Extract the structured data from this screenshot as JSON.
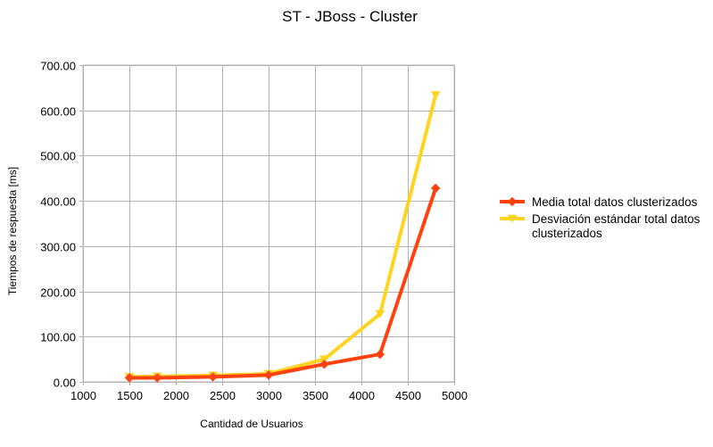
{
  "chart_data": {
    "type": "line",
    "title": "ST - JBoss - Cluster",
    "xlabel": "Cantidad de Usuarios",
    "ylabel": "Tiempos de respuesta [ms]",
    "xlim": [
      1000,
      5000
    ],
    "ylim": [
      0,
      700
    ],
    "x_ticks": [
      "1000",
      "1500",
      "2000",
      "2500",
      "3000",
      "3500",
      "4000",
      "4500",
      "5000"
    ],
    "y_ticks": [
      "0.00",
      "100.00",
      "200.00",
      "300.00",
      "400.00",
      "500.00",
      "600.00",
      "700.00"
    ],
    "grid": true,
    "legend_position": "right",
    "series": [
      {
        "name": "Media total datos clusterizados",
        "name_lines": [
          "Media total datos clusterizados"
        ],
        "color": "#ff420e",
        "marker": "diamond",
        "x": [
          1500,
          1800,
          2400,
          3000,
          3600,
          4200,
          4800
        ],
        "y": [
          9,
          9,
          11,
          15,
          39,
          61,
          428
        ]
      },
      {
        "name": "Desviación estándar total datos clusterizados",
        "name_lines": [
          "Desviación estándar total datos",
          "clusterizados"
        ],
        "color": "#ffd320",
        "marker": "triangle-down",
        "x": [
          1500,
          1800,
          2400,
          3000,
          3600,
          4200,
          4800
        ],
        "y": [
          11,
          12,
          14,
          18,
          50,
          150,
          634
        ]
      }
    ]
  }
}
